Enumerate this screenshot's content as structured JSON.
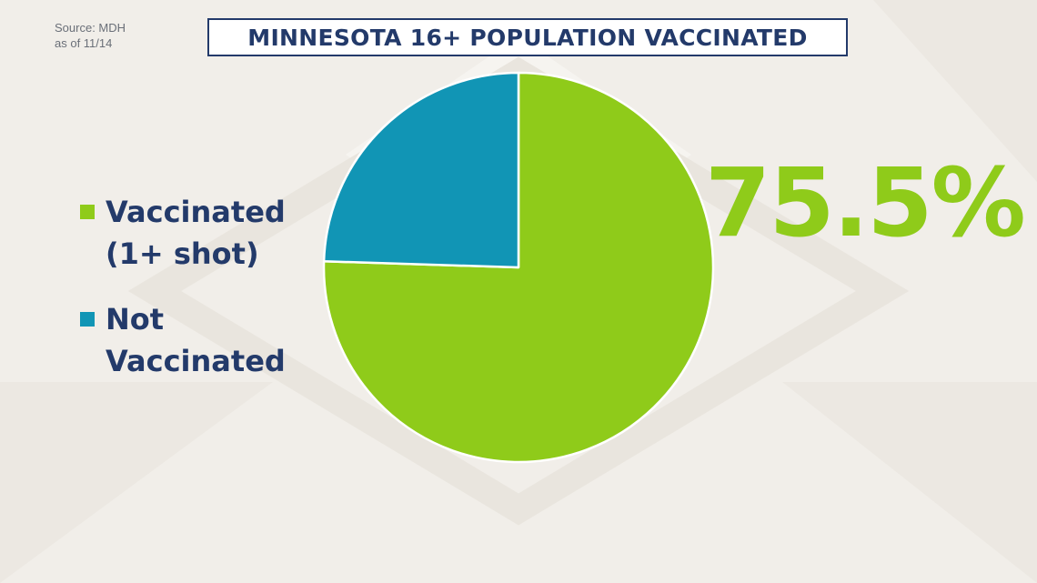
{
  "source": {
    "line1": "Source: MDH",
    "line2": "as of 11/14"
  },
  "chart_data": {
    "type": "pie",
    "title": "MINNESOTA 16+ POPULATION VACCINATED",
    "slices": [
      {
        "label": "Vaccinated (1+ shot)",
        "label_lines": [
          "Vaccinated",
          "(1+ shot)"
        ],
        "value": 75.5,
        "color": "#8fcb1a"
      },
      {
        "label": "Not Vaccinated",
        "label_lines": [
          "Not",
          "Vaccinated"
        ],
        "value": 24.5,
        "color": "#1195b5"
      }
    ],
    "highlight_label": "75.5%",
    "legend_position": "left"
  }
}
